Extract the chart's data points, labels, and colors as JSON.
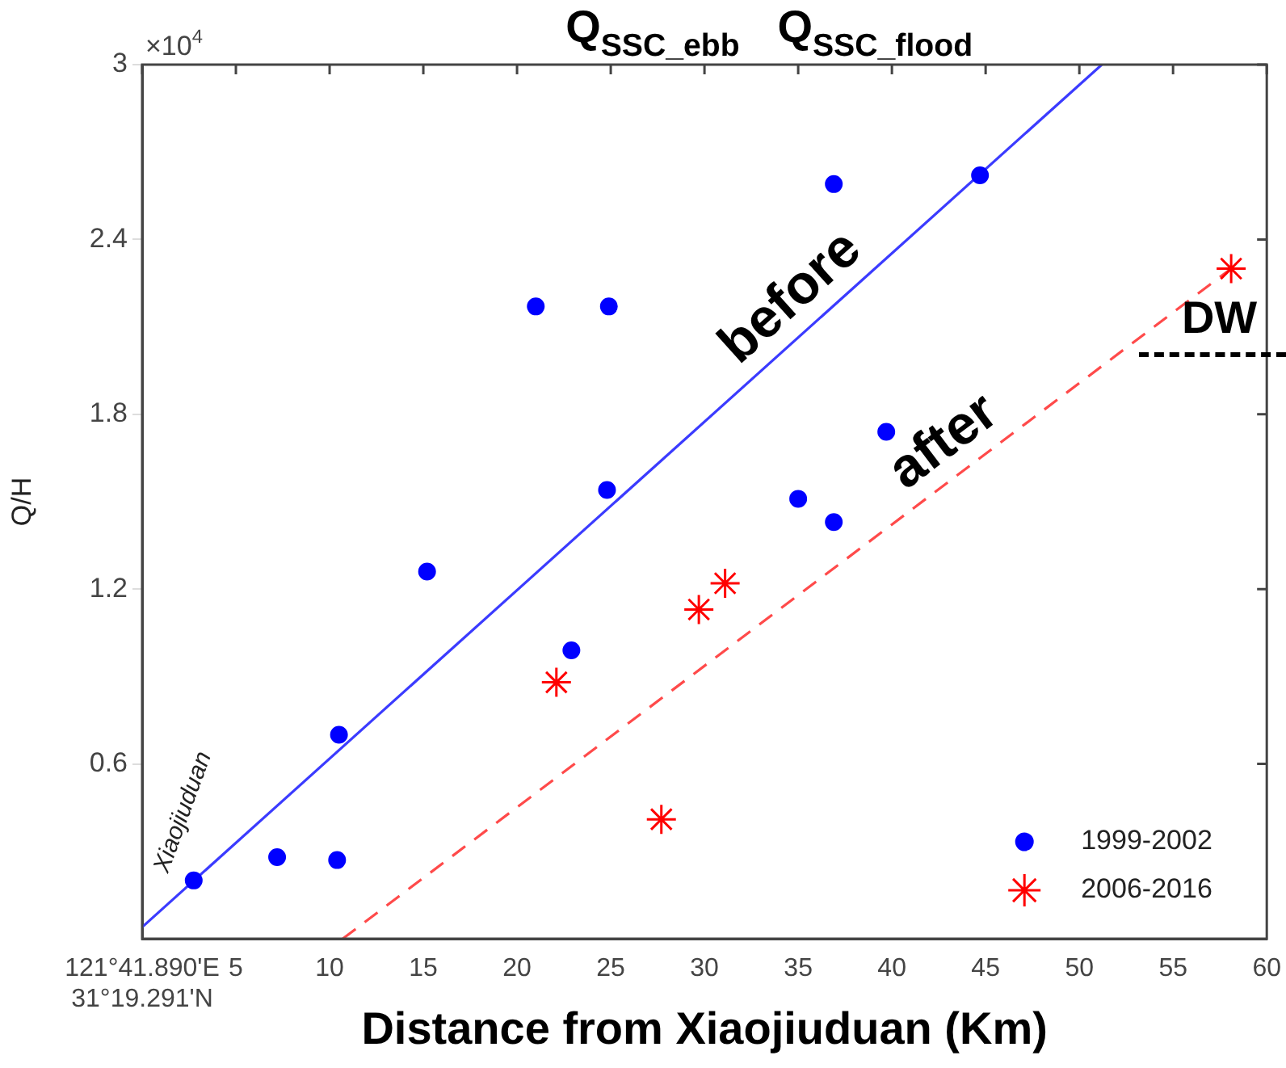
{
  "chart_data": {
    "type": "scatter",
    "title": "Q$_{SSC_ebb}$   Q$_{SSC_flood}$",
    "xlabel": "Distance from Xiaojiuduan (Km)",
    "ylabel": "Q/H",
    "xlim": [
      0,
      60
    ],
    "ylim": [
      0,
      3
    ],
    "xticks": [
      {
        "value": 0,
        "label": "121°41.890'E\n31°19.291'N"
      },
      5,
      10,
      15,
      20,
      25,
      30,
      35,
      40,
      45,
      50,
      55,
      60
    ],
    "yticks": [
      0.6,
      1.2,
      1.8,
      2.4,
      3
    ],
    "grid": false,
    "legend": "bottom right",
    "annotations": [
      "×10$^{4}$",
      "DW",
      {
        "text": "Xiaojiuduan",
        "x": 2.75,
        "y": 0.2
      }
    ],
    "series": [
      {
        "name": "1999-2002",
        "color": "#0000ff",
        "marker": "circle",
        "x": [
          2.75,
          7.2,
          10.4,
          10.5,
          15.2,
          21.0,
          24.9,
          24.8,
          22.9,
          36.9,
          44.7,
          35.0,
          36.9,
          39.7
        ],
        "values": [
          0.2,
          0.28,
          0.27,
          0.7,
          1.26,
          2.17,
          2.17,
          1.54,
          0.99,
          2.59,
          2.62,
          1.51,
          1.43,
          1.74
        ]
      },
      {
        "name": "2006-2016",
        "color": "#ff0000",
        "marker": "cross",
        "x": [
          22.1,
          27.7,
          29.7,
          31.1,
          58.1
        ],
        "values": [
          0.88,
          0.41,
          1.13,
          1.22,
          2.3
        ]
      },
      {
        "name": "before",
        "type": "line",
        "color": "#3b3bff",
        "marker": "none",
        "line_style": "solid",
        "x": [
          0,
          51.2
        ],
        "values": [
          0.04,
          3
        ]
      },
      {
        "name": "after",
        "type": "line",
        "color": "#ff4a4a",
        "marker": "none",
        "line_style": "dashed",
        "x": [
          10.7,
          58.1
        ],
        "values": [
          0,
          2.3
        ]
      }
    ]
  }
}
